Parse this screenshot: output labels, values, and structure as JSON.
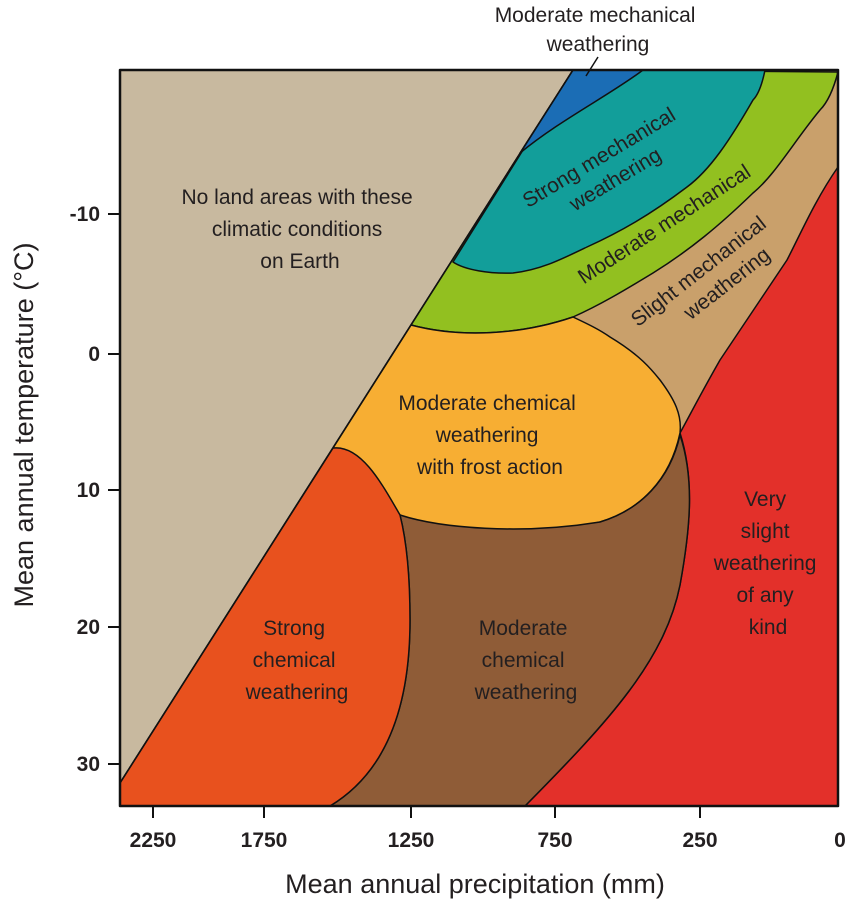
{
  "chart_data": {
    "type": "region-diagram",
    "xlabel": "Mean annual precipitation (mm)",
    "ylabel": "Mean annual temperature (°C)",
    "x_ticks": [
      "2250",
      "1750",
      "1250",
      "750",
      "250",
      "0"
    ],
    "y_ticks": [
      "-10",
      "0",
      "10",
      "20",
      "30"
    ],
    "x_direction": "reversed",
    "y_direction": "reversed",
    "regions": [
      {
        "name": "no-land",
        "lines": [
          "No land areas with these",
          "climatic conditions",
          "on Earth"
        ],
        "color": "#c8b99f"
      },
      {
        "name": "moderate-mechanical-top",
        "lines": [
          "Moderate mechanical",
          "weathering"
        ],
        "color": "#1b6db5"
      },
      {
        "name": "strong-mechanical",
        "lines": [
          "Strong mechanical",
          "weathering"
        ],
        "color": "#129e9a"
      },
      {
        "name": "moderate-mechanical",
        "lines": [
          "Moderate mechanical"
        ],
        "color": "#92c020"
      },
      {
        "name": "slight-mechanical",
        "lines": [
          "Slight mechanical",
          "weathering"
        ],
        "color": "#c9a06b"
      },
      {
        "name": "moderate-chemical-frost",
        "lines": [
          "Moderate chemical",
          "weathering",
          "with frost action"
        ],
        "color": "#f7ae33"
      },
      {
        "name": "strong-chemical",
        "lines": [
          "Strong",
          "chemical",
          "weathering"
        ],
        "color": "#e8511e"
      },
      {
        "name": "moderate-chemical",
        "lines": [
          "Moderate",
          "chemical",
          "weathering"
        ],
        "color": "#8f5c37"
      },
      {
        "name": "very-slight",
        "lines": [
          "Very",
          "slight",
          "weathering",
          "of any",
          "kind"
        ],
        "color": "#e3302a"
      }
    ]
  }
}
